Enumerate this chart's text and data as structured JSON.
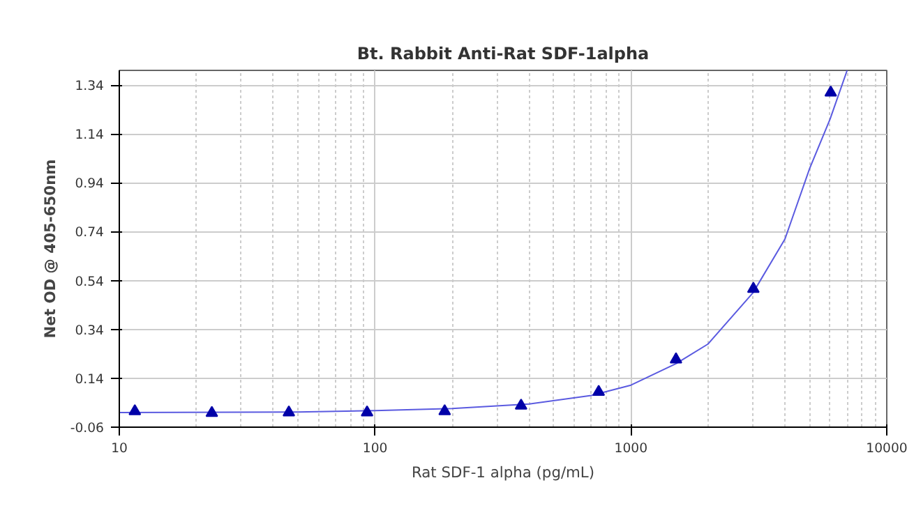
{
  "chart_data": {
    "type": "scatter",
    "title": "Bt. Rabbit Anti-Rat SDF-1alpha",
    "xlabel": "Rat SDF-1 alpha (pg/mL)",
    "ylabel": "Net OD @ 405-650nm",
    "log": "x",
    "xlim": [
      10,
      10000
    ],
    "xticks": [
      10,
      100,
      1000,
      10000
    ],
    "ylim": [
      -0.06,
      1.4
    ],
    "yticks": [
      -0.06,
      0.14,
      0.34,
      0.54,
      0.74,
      0.94,
      1.14,
      1.34
    ],
    "grid": true,
    "series": [
      {
        "type": "line",
        "color": "#5a5ae0",
        "marker": "none",
        "x": [
          10,
          50,
          100,
          200,
          400,
          700,
          1000,
          1500,
          2000,
          3000,
          4000,
          5000,
          6000,
          7000
        ],
        "values": [
          0.0,
          0.002,
          0.008,
          0.016,
          0.035,
          0.07,
          0.112,
          0.2,
          0.28,
          0.49,
          0.71,
          1.0,
          1.2,
          1.4
        ]
      },
      {
        "color": "#0000a8",
        "marker": "triangle",
        "x": [
          11.5,
          23,
          46,
          93,
          187,
          372,
          748,
          1500,
          3010,
          6040
        ],
        "values": [
          0.005,
          -0.002,
          0.0,
          0.0,
          0.005,
          0.028,
          0.084,
          0.217,
          0.506,
          1.309
        ]
      }
    ]
  }
}
